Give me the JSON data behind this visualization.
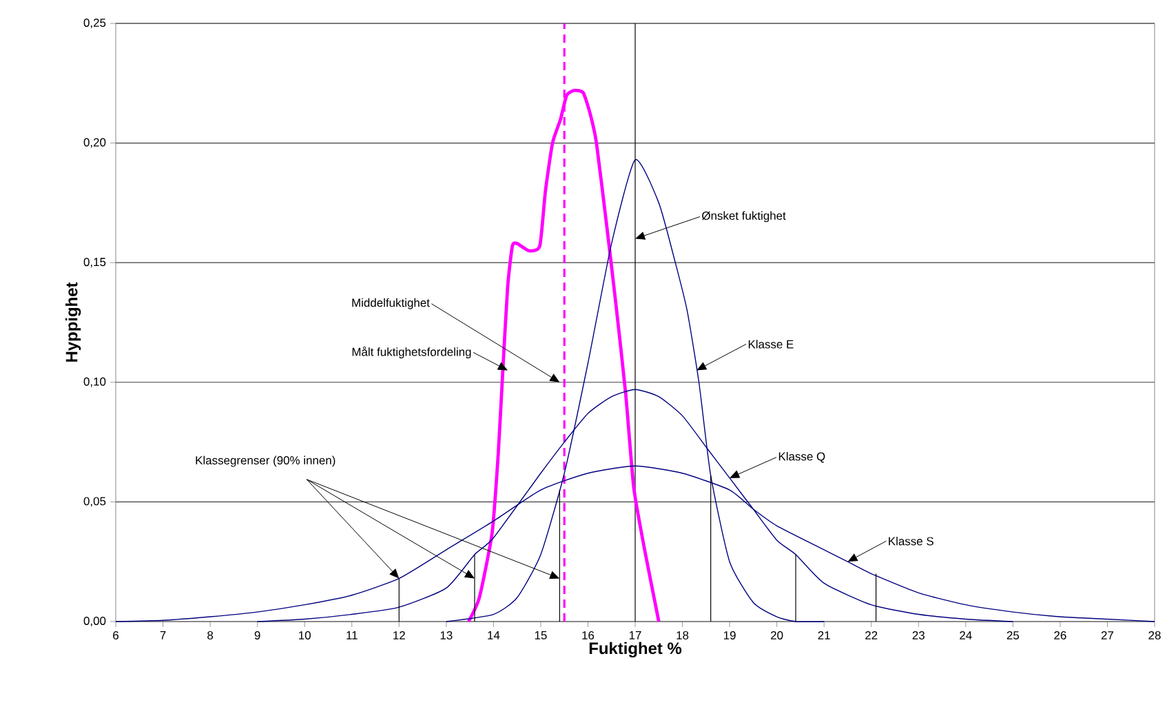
{
  "chart_data": {
    "type": "line",
    "xlabel": "Fuktighet %",
    "ylabel": "Hyppighet",
    "xlim": [
      6,
      28
    ],
    "xticks": [
      6,
      7,
      8,
      9,
      10,
      11,
      12,
      13,
      14,
      15,
      16,
      17,
      18,
      19,
      20,
      21,
      22,
      23,
      24,
      25,
      26,
      27,
      28
    ],
    "ylim": [
      0,
      0.25
    ],
    "yticks": [
      {
        "value": 0,
        "label": "0,00"
      },
      {
        "value": 0.05,
        "label": "0,05"
      },
      {
        "value": 0.1,
        "label": "0,10"
      },
      {
        "value": 0.15,
        "label": "0,15"
      },
      {
        "value": 0.2,
        "label": "0,20"
      },
      {
        "value": 0.25,
        "label": "0,25"
      }
    ],
    "grid": "y",
    "marker": "none",
    "series": [
      {
        "color": "#ff00ff",
        "x": [
          13.47,
          13.7,
          13.97,
          14.1,
          14.2,
          14.3,
          14.4,
          14.5,
          14.75,
          14.98,
          15.1,
          15.25,
          15.42,
          15.55,
          15.72,
          15.9,
          16.05,
          16.18,
          16.4,
          16.59,
          16.8,
          16.97,
          17.2,
          17.5
        ],
        "values": [
          0,
          0.01,
          0.037,
          0.07,
          0.106,
          0.14,
          0.157,
          0.158,
          0.155,
          0.157,
          0.18,
          0.2,
          0.21,
          0.22,
          0.222,
          0.221,
          0.212,
          0.2,
          0.165,
          0.133,
          0.095,
          0.056,
          0.03,
          0
        ]
      },
      {
        "color": "#000080",
        "x": [
          13,
          14,
          14.5,
          15,
          15.5,
          16,
          16.5,
          17,
          17.5,
          17.85,
          18.1,
          18.35,
          18.6,
          19,
          19.5,
          20,
          20.4,
          21
        ],
        "values": [
          0,
          0.003,
          0.01,
          0.028,
          0.062,
          0.108,
          0.158,
          0.193,
          0.175,
          0.15,
          0.13,
          0.1,
          0.061,
          0.025,
          0.008,
          0.002,
          0,
          0
        ]
      },
      {
        "color": "#000080",
        "x": [
          9,
          10,
          11,
          12,
          13,
          13.6,
          14,
          15,
          15.5,
          16,
          16.5,
          17,
          17.5,
          18,
          18.5,
          19,
          19.5,
          20,
          20.4,
          21,
          22,
          23,
          24,
          25
        ],
        "values": [
          0,
          0.001,
          0.003,
          0.006,
          0.014,
          0.028,
          0.035,
          0.062,
          0.075,
          0.087,
          0.094,
          0.097,
          0.094,
          0.086,
          0.073,
          0.06,
          0.047,
          0.034,
          0.028,
          0.016,
          0.007,
          0.003,
          0.001,
          0
        ]
      },
      {
        "color": "#000080",
        "x": [
          6,
          7,
          8,
          9,
          10,
          11,
          12,
          13,
          14,
          15,
          16,
          17,
          18,
          19,
          19.5,
          20,
          21,
          21.5,
          22,
          23,
          24,
          25,
          26,
          27,
          28
        ],
        "values": [
          0,
          0.0005,
          0.002,
          0.004,
          0.007,
          0.011,
          0.018,
          0.03,
          0.042,
          0.055,
          0.062,
          0.065,
          0.062,
          0.055,
          0.047,
          0.04,
          0.03,
          0.025,
          0.02,
          0.012,
          0.007,
          0.004,
          0.002,
          0.001,
          0
        ]
      },
      {
        "color": "#000000",
        "x": [
          12,
          12
        ],
        "values": [
          0,
          0.018
        ]
      },
      {
        "color": "#000000",
        "x": [
          13.6,
          13.6
        ],
        "values": [
          0,
          0.028
        ]
      },
      {
        "color": "#000000",
        "x": [
          15.4,
          15.4
        ],
        "values": [
          0,
          0.055
        ]
      },
      {
        "color": "#000000",
        "x": [
          18.6,
          18.6
        ],
        "values": [
          0,
          0.061
        ]
      },
      {
        "color": "#000000",
        "x": [
          20.4,
          20.4
        ],
        "values": [
          0,
          0.028
        ]
      },
      {
        "color": "#000000",
        "x": [
          22.1,
          22.1
        ],
        "values": [
          0,
          0.02
        ]
      }
    ],
    "ref_lines": [
      {
        "axis": "x",
        "value": 17,
        "color": "#000000"
      },
      {
        "axis": "x",
        "value": 15.5,
        "color": "#ff00ff",
        "line_style": "dashed"
      }
    ],
    "annotations": [
      {
        "text": "Ønsket fuktighet",
        "x": 17,
        "y": 0.16
      },
      {
        "text": "Klasse E",
        "x": 18.3,
        "y": 0.105
      },
      {
        "text": "Klasse Q",
        "x": 19.0,
        "y": 0.06
      },
      {
        "text": "Klasse S",
        "x": 21.5,
        "y": 0.025
      },
      {
        "text": "Middelfuktighet",
        "x": 15.4,
        "y": 0.1
      },
      {
        "text": "Målt fuktighetsfordeling",
        "x": 14.3,
        "y": 0.105
      },
      {
        "text": "Klassegrenser (90% innen)",
        "x": 12,
        "y": 0.018
      }
    ]
  }
}
